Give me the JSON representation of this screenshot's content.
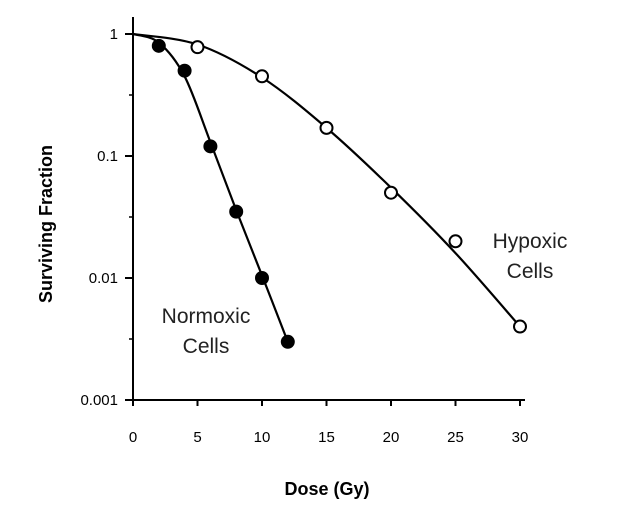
{
  "chart_data": {
    "type": "scatter",
    "title": "",
    "xlabel": "Dose (Gy)",
    "ylabel": "Surviving Fraction",
    "xlim": [
      0,
      30
    ],
    "ylim": [
      0.001,
      1
    ],
    "yscale": "log",
    "grid": false,
    "x_ticks": [
      0,
      5,
      10,
      15,
      20,
      25,
      30
    ],
    "x_tick_labels": [
      "0",
      "5",
      "10",
      "15",
      "20",
      "25",
      "30"
    ],
    "y_ticks": [
      1,
      0.1,
      0.01,
      0.001
    ],
    "y_tick_labels": [
      "1",
      "0.1",
      "0.01",
      "0.001"
    ],
    "series": [
      {
        "name": "Normoxic Cells",
        "marker": "filled-circle",
        "color": "#000000",
        "points": [
          {
            "x": 2,
            "y": 0.8
          },
          {
            "x": 4,
            "y": 0.5
          },
          {
            "x": 6,
            "y": 0.12
          },
          {
            "x": 8,
            "y": 0.035
          },
          {
            "x": 10,
            "y": 0.01
          },
          {
            "x": 12,
            "y": 0.003
          }
        ],
        "curve": [
          {
            "x": 0,
            "y": 1.0
          },
          {
            "x": 2,
            "y": 0.85
          },
          {
            "x": 4,
            "y": 0.45
          },
          {
            "x": 6,
            "y": 0.13
          },
          {
            "x": 8,
            "y": 0.036
          },
          {
            "x": 10,
            "y": 0.0105
          },
          {
            "x": 12,
            "y": 0.003
          }
        ]
      },
      {
        "name": "Hypoxic Cells",
        "marker": "open-circle",
        "color": "#000000",
        "points": [
          {
            "x": 5,
            "y": 0.78
          },
          {
            "x": 10,
            "y": 0.45
          },
          {
            "x": 15,
            "y": 0.17
          },
          {
            "x": 20,
            "y": 0.05
          },
          {
            "x": 25,
            "y": 0.02
          },
          {
            "x": 30,
            "y": 0.004
          }
        ],
        "curve": [
          {
            "x": 0,
            "y": 1.0
          },
          {
            "x": 5,
            "y": 0.82
          },
          {
            "x": 10,
            "y": 0.44
          },
          {
            "x": 15,
            "y": 0.17
          },
          {
            "x": 20,
            "y": 0.055
          },
          {
            "x": 25,
            "y": 0.016
          },
          {
            "x": 30,
            "y": 0.004
          }
        ]
      }
    ],
    "annotations": [
      {
        "lines": [
          "Normoxic",
          "Cells"
        ]
      },
      {
        "lines": [
          "Hypoxic",
          "Cells"
        ]
      }
    ]
  }
}
